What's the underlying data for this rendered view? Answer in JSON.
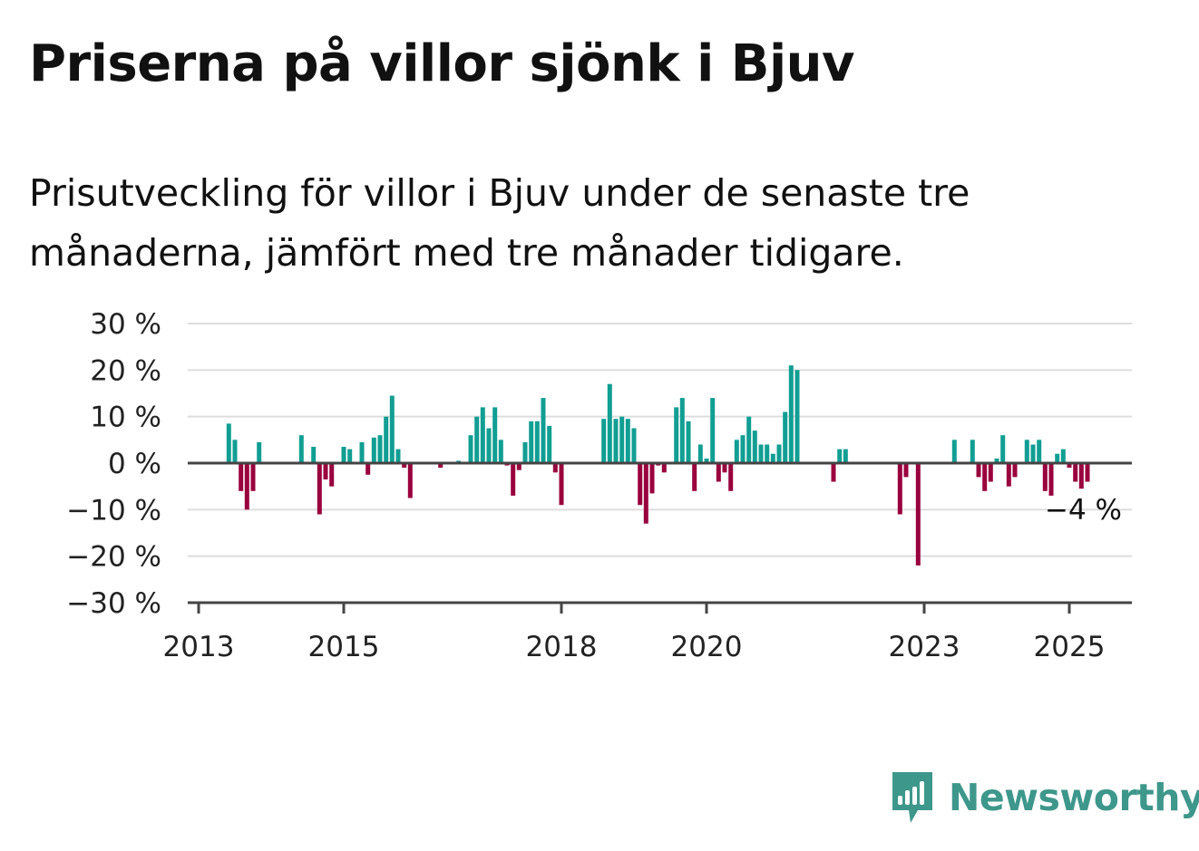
{
  "title": "Priserna på villor sjönk i Bjuv",
  "subtitle": "Prisutveckling för villor i Bjuv under de senaste tre månaderna, jämfört med tre månader tidigare.",
  "brand": "Newsworthy",
  "colors": {
    "positive": "#119e93",
    "negative": "#99003d",
    "grid": "#dddddd",
    "axis": "#444444",
    "brand": "#3e978b"
  },
  "chart_data": {
    "type": "bar",
    "x_start": "2013-01",
    "x_end": "2025-09",
    "ylim": [
      -30,
      30
    ],
    "y_ticks": [
      30,
      20,
      10,
      0,
      -10,
      -20,
      -30
    ],
    "y_tick_labels": [
      "30 %",
      "20 %",
      "10 %",
      "0 %",
      "−10 %",
      "−20 %",
      "−30 %"
    ],
    "x_ticks": [
      "2013",
      "2015",
      "2018",
      "2020",
      "2023",
      "2025"
    ],
    "last_value_label": "−4 %",
    "points": [
      {
        "x": "2013-06",
        "y": 8.5
      },
      {
        "x": "2013-07",
        "y": 5
      },
      {
        "x": "2013-08",
        "y": -6
      },
      {
        "x": "2013-09",
        "y": -10
      },
      {
        "x": "2013-10",
        "y": -6
      },
      {
        "x": "2013-11",
        "y": 4.5
      },
      {
        "x": "2014-06",
        "y": 6
      },
      {
        "x": "2014-08",
        "y": 3.5
      },
      {
        "x": "2014-09",
        "y": -11
      },
      {
        "x": "2014-10",
        "y": -3.5
      },
      {
        "x": "2014-11",
        "y": -5
      },
      {
        "x": "2015-01",
        "y": 3.5
      },
      {
        "x": "2015-02",
        "y": 3
      },
      {
        "x": "2015-04",
        "y": 4.5
      },
      {
        "x": "2015-05",
        "y": -2.5
      },
      {
        "x": "2015-06",
        "y": 5.5
      },
      {
        "x": "2015-07",
        "y": 6
      },
      {
        "x": "2015-08",
        "y": 10
      },
      {
        "x": "2015-09",
        "y": 14.5
      },
      {
        "x": "2015-10",
        "y": 3
      },
      {
        "x": "2015-11",
        "y": -1
      },
      {
        "x": "2015-12",
        "y": -7.5
      },
      {
        "x": "2016-05",
        "y": -1
      },
      {
        "x": "2016-08",
        "y": 0.5
      },
      {
        "x": "2016-10",
        "y": 6
      },
      {
        "x": "2016-11",
        "y": 10
      },
      {
        "x": "2016-12",
        "y": 12
      },
      {
        "x": "2017-01",
        "y": 7.5
      },
      {
        "x": "2017-02",
        "y": 12
      },
      {
        "x": "2017-03",
        "y": 5
      },
      {
        "x": "2017-04",
        "y": -0.5
      },
      {
        "x": "2017-05",
        "y": -7
      },
      {
        "x": "2017-06",
        "y": -1.5
      },
      {
        "x": "2017-07",
        "y": 4.5
      },
      {
        "x": "2017-08",
        "y": 9
      },
      {
        "x": "2017-09",
        "y": 9
      },
      {
        "x": "2017-10",
        "y": 14
      },
      {
        "x": "2017-11",
        "y": 8
      },
      {
        "x": "2017-12",
        "y": -2
      },
      {
        "x": "2018-01",
        "y": -9
      },
      {
        "x": "2018-08",
        "y": 9.5
      },
      {
        "x": "2018-09",
        "y": 17
      },
      {
        "x": "2018-10",
        "y": 9.5
      },
      {
        "x": "2018-11",
        "y": 10
      },
      {
        "x": "2018-12",
        "y": 9.5
      },
      {
        "x": "2019-01",
        "y": 7.5
      },
      {
        "x": "2019-02",
        "y": -9
      },
      {
        "x": "2019-03",
        "y": -13
      },
      {
        "x": "2019-04",
        "y": -6.5
      },
      {
        "x": "2019-05",
        "y": -0.5
      },
      {
        "x": "2019-06",
        "y": -2
      },
      {
        "x": "2019-08",
        "y": 12
      },
      {
        "x": "2019-09",
        "y": 14
      },
      {
        "x": "2019-10",
        "y": 9
      },
      {
        "x": "2019-11",
        "y": -6
      },
      {
        "x": "2019-12",
        "y": 4
      },
      {
        "x": "2020-01",
        "y": 1
      },
      {
        "x": "2020-02",
        "y": 14
      },
      {
        "x": "2020-03",
        "y": -4
      },
      {
        "x": "2020-04",
        "y": -2
      },
      {
        "x": "2020-05",
        "y": -6
      },
      {
        "x": "2020-06",
        "y": 5
      },
      {
        "x": "2020-07",
        "y": 6
      },
      {
        "x": "2020-08",
        "y": 10
      },
      {
        "x": "2020-09",
        "y": 7
      },
      {
        "x": "2020-10",
        "y": 4
      },
      {
        "x": "2020-11",
        "y": 4
      },
      {
        "x": "2020-12",
        "y": 2
      },
      {
        "x": "2021-01",
        "y": 4
      },
      {
        "x": "2021-02",
        "y": 11
      },
      {
        "x": "2021-03",
        "y": 21
      },
      {
        "x": "2021-04",
        "y": 20
      },
      {
        "x": "2021-10",
        "y": -4
      },
      {
        "x": "2021-11",
        "y": 3
      },
      {
        "x": "2021-12",
        "y": 3
      },
      {
        "x": "2022-09",
        "y": -11
      },
      {
        "x": "2022-10",
        "y": -3
      },
      {
        "x": "2022-12",
        "y": -22
      },
      {
        "x": "2023-06",
        "y": 5
      },
      {
        "x": "2023-09",
        "y": 5
      },
      {
        "x": "2023-10",
        "y": -3
      },
      {
        "x": "2023-11",
        "y": -6
      },
      {
        "x": "2023-12",
        "y": -4
      },
      {
        "x": "2024-01",
        "y": 1
      },
      {
        "x": "2024-02",
        "y": 6
      },
      {
        "x": "2024-03",
        "y": -5
      },
      {
        "x": "2024-04",
        "y": -3
      },
      {
        "x": "2024-06",
        "y": 5
      },
      {
        "x": "2024-07",
        "y": 4
      },
      {
        "x": "2024-08",
        "y": 5
      },
      {
        "x": "2024-09",
        "y": -6
      },
      {
        "x": "2024-10",
        "y": -7
      },
      {
        "x": "2024-11",
        "y": 2
      },
      {
        "x": "2024-12",
        "y": 3
      },
      {
        "x": "2025-01",
        "y": -1
      },
      {
        "x": "2025-02",
        "y": -4
      },
      {
        "x": "2025-03",
        "y": -5.5
      },
      {
        "x": "2025-04",
        "y": -4
      }
    ]
  }
}
